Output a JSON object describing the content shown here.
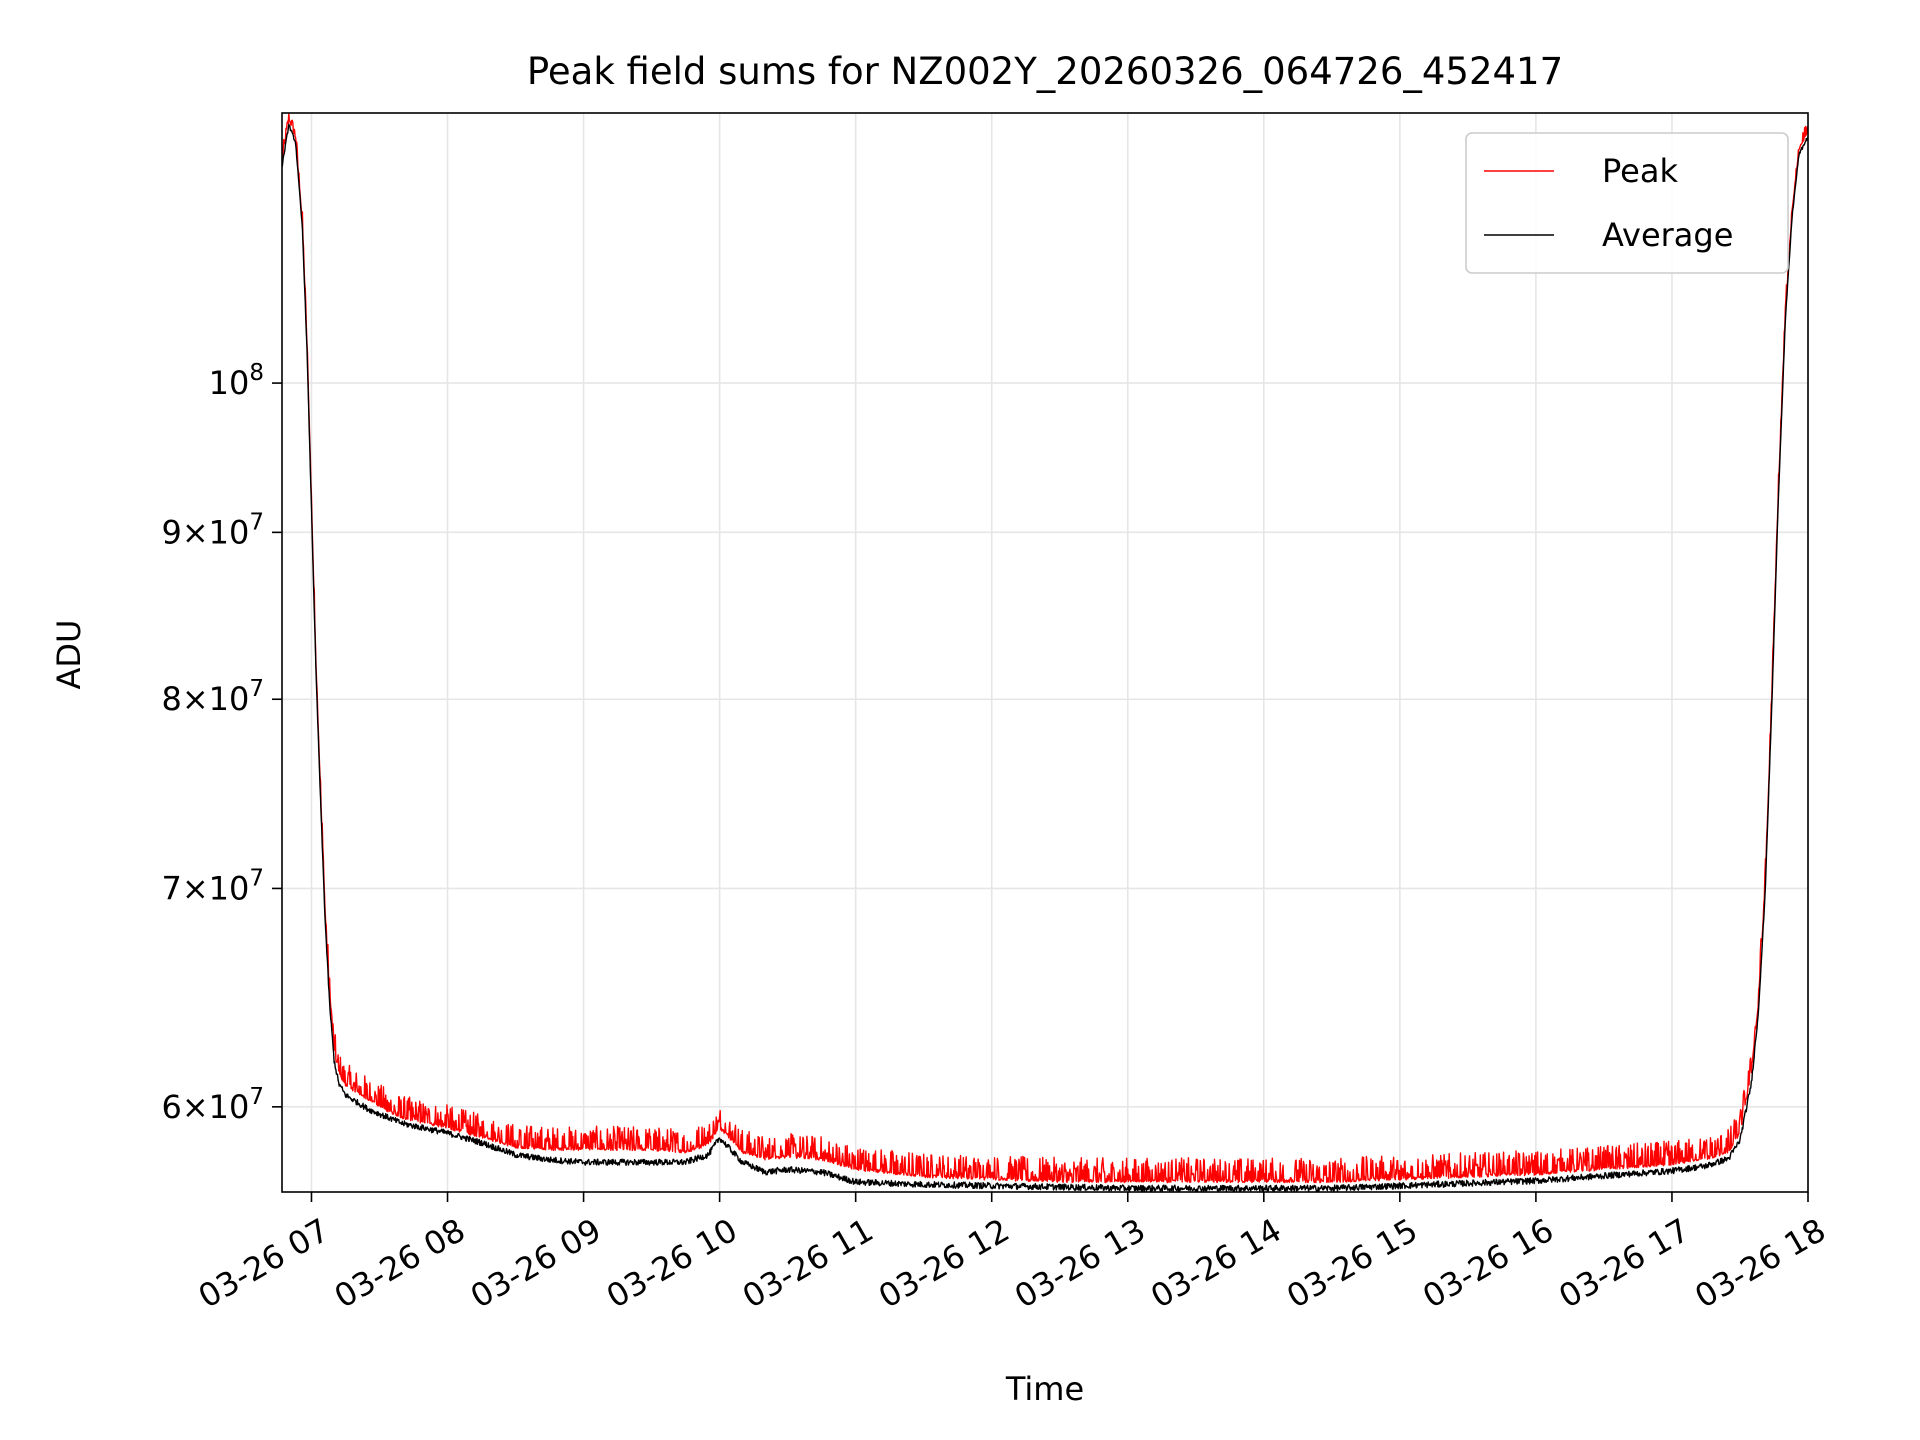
{
  "chart_data": {
    "type": "line",
    "title": "Peak field sums for NZ002Y_20260326_064726_452417",
    "xlabel": "Time",
    "ylabel": "ADU",
    "yscale": "log",
    "grid": true,
    "legend_position": "top-right",
    "xlim": [
      "2026-03-26 06:47",
      "2026-03-26 18:00"
    ],
    "ylim": [
      56500000,
      121000000
    ],
    "x_ticks": [
      {
        "value": "2026-03-26 07:00",
        "label": "03-26 07"
      },
      {
        "value": "2026-03-26 08:00",
        "label": "03-26 08"
      },
      {
        "value": "2026-03-26 09:00",
        "label": "03-26 09"
      },
      {
        "value": "2026-03-26 10:00",
        "label": "03-26 10"
      },
      {
        "value": "2026-03-26 11:00",
        "label": "03-26 11"
      },
      {
        "value": "2026-03-26 12:00",
        "label": "03-26 12"
      },
      {
        "value": "2026-03-26 13:00",
        "label": "03-26 13"
      },
      {
        "value": "2026-03-26 14:00",
        "label": "03-26 14"
      },
      {
        "value": "2026-03-26 15:00",
        "label": "03-26 15"
      },
      {
        "value": "2026-03-26 16:00",
        "label": "03-26 16"
      },
      {
        "value": "2026-03-26 17:00",
        "label": "03-26 17"
      },
      {
        "value": "2026-03-26 18:00",
        "label": "03-26 18"
      }
    ],
    "y_ticks": [
      {
        "value": 60000000,
        "mantissa": "6",
        "base": "10",
        "exp": "7"
      },
      {
        "value": 70000000,
        "mantissa": "7",
        "base": "10",
        "exp": "7"
      },
      {
        "value": 80000000,
        "mantissa": "8",
        "base": "10",
        "exp": "7"
      },
      {
        "value": 90000000,
        "mantissa": "9",
        "base": "10",
        "exp": "7"
      },
      {
        "value": 100000000,
        "mantissa": "",
        "base": "10",
        "exp": "8"
      }
    ],
    "series": [
      {
        "name": "Peak",
        "color": "#ff0000",
        "noise_amplitude": 900000,
        "x": [
          "2026-03-26 06:47",
          "2026-03-26 06:50",
          "2026-03-26 06:53",
          "2026-03-26 06:56",
          "2026-03-26 06:58",
          "2026-03-26 07:00",
          "2026-03-26 07:02",
          "2026-03-26 07:04",
          "2026-03-26 07:06",
          "2026-03-26 07:08",
          "2026-03-26 07:10",
          "2026-03-26 07:12",
          "2026-03-26 07:15",
          "2026-03-26 07:20",
          "2026-03-26 07:25",
          "2026-03-26 07:30",
          "2026-03-26 07:40",
          "2026-03-26 07:50",
          "2026-03-26 08:00",
          "2026-03-26 08:15",
          "2026-03-26 08:30",
          "2026-03-26 08:45",
          "2026-03-26 09:00",
          "2026-03-26 09:15",
          "2026-03-26 09:30",
          "2026-03-26 09:45",
          "2026-03-26 09:55",
          "2026-03-26 10:00",
          "2026-03-26 10:05",
          "2026-03-26 10:10",
          "2026-03-26 10:20",
          "2026-03-26 10:30",
          "2026-03-26 10:45",
          "2026-03-26 11:00",
          "2026-03-26 11:30",
          "2026-03-26 12:00",
          "2026-03-26 12:30",
          "2026-03-26 13:00",
          "2026-03-26 13:30",
          "2026-03-26 14:00",
          "2026-03-26 14:30",
          "2026-03-26 15:00",
          "2026-03-26 15:30",
          "2026-03-26 16:00",
          "2026-03-26 16:30",
          "2026-03-26 17:00",
          "2026-03-26 17:15",
          "2026-03-26 17:25",
          "2026-03-26 17:30",
          "2026-03-26 17:35",
          "2026-03-26 17:38",
          "2026-03-26 17:41",
          "2026-03-26 17:44",
          "2026-03-26 17:47",
          "2026-03-26 17:50",
          "2026-03-26 17:53",
          "2026-03-26 17:56",
          "2026-03-26 18:00"
        ],
        "y": [
          117000000,
          120500000,
          119000000,
          112000000,
          103000000,
          92000000,
          82000000,
          75000000,
          69000000,
          65000000,
          62500000,
          61500000,
          61000000,
          60700000,
          60400000,
          60100000,
          59600000,
          59400000,
          59200000,
          58800000,
          58400000,
          58300000,
          58300000,
          58300000,
          58300000,
          58200000,
          58500000,
          59200000,
          58700000,
          58200000,
          57900000,
          58000000,
          57900000,
          57500000,
          57200000,
          57100000,
          57000000,
          57000000,
          57000000,
          57000000,
          57000000,
          57100000,
          57200000,
          57300000,
          57500000,
          57700000,
          57900000,
          58200000,
          59000000,
          61500000,
          64500000,
          70000000,
          80000000,
          93000000,
          105000000,
          113000000,
          118000000,
          119500000
        ]
      },
      {
        "name": "Average",
        "color": "#000000",
        "noise_amplitude": 250000,
        "x": [
          "2026-03-26 06:47",
          "2026-03-26 06:50",
          "2026-03-26 06:53",
          "2026-03-26 06:56",
          "2026-03-26 06:58",
          "2026-03-26 07:00",
          "2026-03-26 07:02",
          "2026-03-26 07:04",
          "2026-03-26 07:06",
          "2026-03-26 07:08",
          "2026-03-26 07:10",
          "2026-03-26 07:12",
          "2026-03-26 07:15",
          "2026-03-26 07:20",
          "2026-03-26 07:25",
          "2026-03-26 07:30",
          "2026-03-26 07:40",
          "2026-03-26 07:50",
          "2026-03-26 08:00",
          "2026-03-26 08:15",
          "2026-03-26 08:30",
          "2026-03-26 08:45",
          "2026-03-26 09:00",
          "2026-03-26 09:15",
          "2026-03-26 09:30",
          "2026-03-26 09:45",
          "2026-03-26 09:55",
          "2026-03-26 10:00",
          "2026-03-26 10:05",
          "2026-03-26 10:10",
          "2026-03-26 10:20",
          "2026-03-26 10:30",
          "2026-03-26 10:45",
          "2026-03-26 11:00",
          "2026-03-26 11:30",
          "2026-03-26 12:00",
          "2026-03-26 12:30",
          "2026-03-26 13:00",
          "2026-03-26 13:30",
          "2026-03-26 14:00",
          "2026-03-26 14:30",
          "2026-03-26 15:00",
          "2026-03-26 15:30",
          "2026-03-26 16:00",
          "2026-03-26 16:30",
          "2026-03-26 17:00",
          "2026-03-26 17:15",
          "2026-03-26 17:25",
          "2026-03-26 17:30",
          "2026-03-26 17:35",
          "2026-03-26 17:38",
          "2026-03-26 17:41",
          "2026-03-26 17:44",
          "2026-03-26 17:47",
          "2026-03-26 17:50",
          "2026-03-26 17:53",
          "2026-03-26 17:56",
          "2026-03-26 18:00"
        ],
        "y": [
          116500000,
          120000000,
          118500000,
          111500000,
          102500000,
          91500000,
          81500000,
          74500000,
          68500000,
          64500000,
          62000000,
          61000000,
          60500000,
          60200000,
          59900000,
          59700000,
          59300000,
          59100000,
          58900000,
          58500000,
          58000000,
          57800000,
          57700000,
          57700000,
          57700000,
          57700000,
          58000000,
          58700000,
          58200000,
          57700000,
          57300000,
          57400000,
          57300000,
          56900000,
          56800000,
          56750000,
          56700000,
          56650000,
          56650000,
          56650000,
          56650000,
          56750000,
          56850000,
          56950000,
          57150000,
          57350000,
          57550000,
          57850000,
          58600000,
          61000000,
          64000000,
          69500000,
          79500000,
          92500000,
          104500000,
          112500000,
          117500000,
          119000000
        ]
      }
    ]
  }
}
